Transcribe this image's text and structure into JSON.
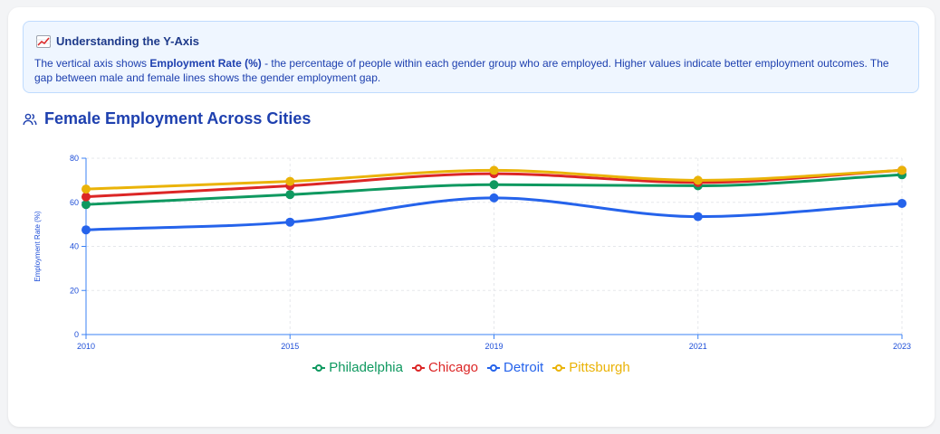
{
  "info": {
    "icon": "chart-increasing-icon",
    "title": "Understanding the Y-Axis",
    "body_pre": "The vertical axis shows ",
    "body_bold": "Employment Rate (%)",
    "body_post": " - the percentage of people within each gender group who are employed. Higher values indicate better employment outcomes. The gap between male and female lines shows the gender employment gap."
  },
  "section": {
    "icon": "users-icon",
    "title": "Female Employment Across Cities"
  },
  "chart_data": {
    "type": "line",
    "title": "",
    "xlabel": "",
    "ylabel": "Employment Rate (%)",
    "categories": [
      "2010",
      "2015",
      "2019",
      "2021",
      "2023"
    ],
    "ylim": [
      0,
      80
    ],
    "yticks": [
      0,
      20,
      40,
      60,
      80
    ],
    "grid": true,
    "legend": "bottom",
    "series": [
      {
        "name": "Philadelphia",
        "color": "#0f9960",
        "values": [
          59,
          63.5,
          68,
          67.5,
          72.5
        ]
      },
      {
        "name": "Chicago",
        "color": "#dc2626",
        "values": [
          62.5,
          67.5,
          73,
          69,
          74.5
        ]
      },
      {
        "name": "Detroit",
        "color": "#2563eb",
        "values": [
          47.5,
          51,
          62,
          53.5,
          59.5
        ]
      },
      {
        "name": "Pittsburgh",
        "color": "#eab308",
        "values": [
          66,
          69.5,
          74.5,
          70,
          74.5
        ]
      }
    ]
  }
}
